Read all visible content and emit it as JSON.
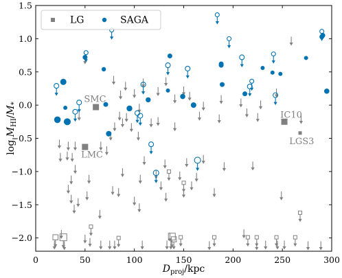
{
  "chart_data": {
    "type": "scatter",
    "xlabel": "D_proj/kpc",
    "ylabel": "log M_HI/M_*",
    "xlim": [
      0,
      300
    ],
    "ylim": [
      -2.2,
      1.5
    ],
    "xticks": [
      0,
      50,
      100,
      150,
      200,
      250,
      300
    ],
    "yticks": [
      -2.0,
      -1.5,
      -1.0,
      -0.5,
      0.0,
      0.5,
      1.0,
      1.5
    ],
    "xtick_labels": [
      "0",
      "50",
      "100",
      "150",
      "200",
      "250",
      "300"
    ],
    "ytick_labels": [
      "−2.0",
      "−1.5",
      "−1.0",
      "−0.5",
      "0.0",
      "0.5",
      "1.0",
      "1.5"
    ],
    "grid": false,
    "legend_position": "top-left",
    "colors": {
      "LG": "#808080",
      "SAGA": "#0072b2"
    },
    "legend": [
      {
        "name": "LG",
        "marker": "square",
        "color": "#808080"
      },
      {
        "name": "SAGA",
        "marker": "circle",
        "color": "#0072b2"
      }
    ],
    "annotations": [
      {
        "text": "SMC",
        "x": 49,
        "y": 0.05
      },
      {
        "text": "LMC",
        "x": 46,
        "y": -0.79
      },
      {
        "text": "IC10",
        "x": 248,
        "y": -0.19
      },
      {
        "text": "LGS3",
        "x": 257,
        "y": -0.59
      }
    ],
    "series": [
      {
        "name": "LG",
        "kind": "detection",
        "points": [
          {
            "x": 50,
            "y": -0.63,
            "size": "large",
            "label": "LMC"
          },
          {
            "x": 61,
            "y": -0.03,
            "size": "large",
            "label": "SMC"
          },
          {
            "x": 252,
            "y": -0.25,
            "size": "large",
            "label": "IC10"
          },
          {
            "x": 268,
            "y": -0.42,
            "size": "small",
            "label": "LGS3"
          }
        ]
      },
      {
        "name": "LG",
        "kind": "upper_limit",
        "arrows": [
          {
            "x": 50,
            "y": 0.75
          },
          {
            "x": 79,
            "y": 0.44
          },
          {
            "x": 86,
            "y": 0.22
          },
          {
            "x": 91,
            "y": 0.35
          },
          {
            "x": 100,
            "y": 0.24
          },
          {
            "x": 105,
            "y": 0.02
          },
          {
            "x": 109,
            "y": 0.4
          },
          {
            "x": 124,
            "y": 0.27
          },
          {
            "x": 132,
            "y": 0.42
          },
          {
            "x": 141,
            "y": 0.16
          },
          {
            "x": 150,
            "y": 0.28
          },
          {
            "x": 156,
            "y": 0.2
          },
          {
            "x": 170,
            "y": 0.05
          },
          {
            "x": 188,
            "y": 0.15
          },
          {
            "x": 208,
            "y": 0.1
          },
          {
            "x": 214,
            "y": -0.05
          },
          {
            "x": 225,
            "y": -0.12
          },
          {
            "x": 228,
            "y": 0.07
          },
          {
            "x": 244,
            "y": 0.25
          },
          {
            "x": 259,
            "y": 1.03
          },
          {
            "x": 269,
            "y": -0.15
          },
          {
            "x": 24,
            "y": -0.52
          },
          {
            "x": 32,
            "y": -0.7
          },
          {
            "x": 44,
            "y": -0.1
          },
          {
            "x": 76,
            "y": -0.4
          },
          {
            "x": 80,
            "y": -0.26
          },
          {
            "x": 85,
            "y": -0.1
          },
          {
            "x": 88,
            "y": -0.2
          },
          {
            "x": 92,
            "y": -0.12
          },
          {
            "x": 97,
            "y": -0.27
          },
          {
            "x": 104,
            "y": -0.4
          },
          {
            "x": 117,
            "y": -0.2
          },
          {
            "x": 124,
            "y": -0.18
          },
          {
            "x": 141,
            "y": -0.26
          },
          {
            "x": 166,
            "y": -0.1
          },
          {
            "x": 186,
            "y": -0.14
          },
          {
            "x": 25,
            "y": -0.72
          },
          {
            "x": 33,
            "y": -0.55
          },
          {
            "x": 37,
            "y": -0.72
          },
          {
            "x": 40,
            "y": -0.55
          },
          {
            "x": 66,
            "y": -0.55
          },
          {
            "x": 72,
            "y": -0.62
          },
          {
            "x": 110,
            "y": -0.77
          },
          {
            "x": 131,
            "y": -0.82
          },
          {
            "x": 153,
            "y": -0.8
          },
          {
            "x": 170,
            "y": -0.75
          },
          {
            "x": 191,
            "y": -0.86
          },
          {
            "x": 220,
            "y": -0.85
          },
          {
            "x": 40,
            "y": -0.9
          },
          {
            "x": 88,
            "y": -0.95
          },
          {
            "x": 122,
            "y": -0.98
          },
          {
            "x": 146,
            "y": -1.0
          },
          {
            "x": 163,
            "y": -1.02
          },
          {
            "x": 36,
            "y": -1.06
          },
          {
            "x": 54,
            "y": -1.05
          },
          {
            "x": 106,
            "y": -1.05
          },
          {
            "x": 127,
            "y": -1.15
          },
          {
            "x": 158,
            "y": -1.15
          },
          {
            "x": 33,
            "y": -1.2
          },
          {
            "x": 52,
            "y": -1.3
          },
          {
            "x": 78,
            "y": -1.22
          },
          {
            "x": 84,
            "y": -1.25
          },
          {
            "x": 150,
            "y": -1.26
          },
          {
            "x": 36,
            "y": -1.35
          },
          {
            "x": 43,
            "y": -1.4
          },
          {
            "x": 100,
            "y": -1.38
          },
          {
            "x": 132,
            "y": -1.32
          },
          {
            "x": 181,
            "y": -1.25
          },
          {
            "x": 249,
            "y": -1.3
          },
          {
            "x": 39,
            "y": -1.5
          },
          {
            "x": 65,
            "y": -1.58
          },
          {
            "x": 105,
            "y": -1.48
          },
          {
            "x": 26,
            "y": -1.88
          },
          {
            "x": 136,
            "y": -1.92
          },
          {
            "x": 211,
            "y": -1.87
          },
          {
            "x": 19,
            "y": -2.04
          },
          {
            "x": 29,
            "y": -2.05
          },
          {
            "x": 50,
            "y": -1.95
          },
          {
            "x": 55,
            "y": -2.0
          },
          {
            "x": 66,
            "y": -2.04
          },
          {
            "x": 75,
            "y": -2.04
          },
          {
            "x": 80,
            "y": -2.04
          },
          {
            "x": 108,
            "y": -2.04
          },
          {
            "x": 133,
            "y": -2.04
          },
          {
            "x": 137,
            "y": -2.04
          },
          {
            "x": 176,
            "y": -2.05
          },
          {
            "x": 224,
            "y": -2.05
          },
          {
            "x": 233,
            "y": -2.04
          },
          {
            "x": 245,
            "y": -2.04
          },
          {
            "x": 252,
            "y": -2.04
          },
          {
            "x": 276,
            "y": -2.05
          },
          {
            "x": 289,
            "y": -2.05
          }
        ],
        "squares": [
          {
            "x": 20,
            "y": -1.99,
            "size": "medium"
          },
          {
            "x": 28,
            "y": -1.99,
            "size": "large"
          },
          {
            "x": 56,
            "y": -1.83,
            "size": "small"
          },
          {
            "x": 84,
            "y": -2.0,
            "size": "small"
          },
          {
            "x": 138,
            "y": -1.98,
            "size": "large"
          },
          {
            "x": 140,
            "y": -2.02,
            "size": "medium"
          },
          {
            "x": 147,
            "y": -1.99,
            "size": "small"
          },
          {
            "x": 181,
            "y": -1.99,
            "size": "small"
          },
          {
            "x": 215,
            "y": -1.99,
            "size": "small"
          },
          {
            "x": 224,
            "y": -1.99,
            "size": "small"
          },
          {
            "x": 244,
            "y": -1.99,
            "size": "small"
          },
          {
            "x": 263,
            "y": -1.99,
            "size": "small"
          },
          {
            "x": 268,
            "y": -1.62,
            "size": "small"
          },
          {
            "x": 135,
            "y": -1.0,
            "size": "small"
          },
          {
            "x": 150,
            "y": -1.17,
            "size": "small"
          }
        ]
      },
      {
        "name": "SAGA",
        "kind": "detection",
        "points": [
          {
            "x": 22,
            "y": -0.22,
            "size": 4.8
          },
          {
            "x": 28,
            "y": 0.35,
            "size": 4.5
          },
          {
            "x": 30,
            "y": -0.04,
            "size": 3.0
          },
          {
            "x": 32,
            "y": -0.25,
            "size": 5.0
          },
          {
            "x": 50,
            "y": 0.72,
            "size": 3.5
          },
          {
            "x": 69,
            "y": 0.54,
            "size": 3.2
          },
          {
            "x": 71,
            "y": 0.01,
            "size": 3.5
          },
          {
            "x": 74,
            "y": -0.43,
            "size": 4.0
          },
          {
            "x": 95,
            "y": -0.05,
            "size": 4.2
          },
          {
            "x": 114,
            "y": 0.08,
            "size": 3.7
          },
          {
            "x": 134,
            "y": 0.22,
            "size": 3.0
          },
          {
            "x": 136,
            "y": 0.74,
            "size": 3.5
          },
          {
            "x": 149,
            "y": 0.13,
            "size": 3.8
          },
          {
            "x": 160,
            "y": 0.0,
            "size": 4.0
          },
          {
            "x": 188,
            "y": 0.62,
            "size": 3.5
          },
          {
            "x": 188,
            "y": 0.6,
            "size": 3.5
          },
          {
            "x": 189,
            "y": 0.31,
            "size": 3.5
          },
          {
            "x": 212,
            "y": 0.17,
            "size": 3.5
          },
          {
            "x": 230,
            "y": 0.56,
            "size": 3.0
          },
          {
            "x": 240,
            "y": 0.49,
            "size": 3.0
          },
          {
            "x": 248,
            "y": 0.47,
            "size": 3.0
          },
          {
            "x": 274,
            "y": 0.71,
            "size": 3.0
          },
          {
            "x": 290,
            "y": 1.03,
            "size": 3.5
          },
          {
            "x": 291,
            "y": 1.05,
            "size": 3.5
          },
          {
            "x": 295,
            "y": 0.21,
            "size": 3.8
          }
        ]
      },
      {
        "name": "SAGA",
        "kind": "upper_limit",
        "points": [
          {
            "x": 21,
            "y": 0.29,
            "size": 3.5
          },
          {
            "x": 40,
            "y": -0.1,
            "size": 3.5
          },
          {
            "x": 44,
            "y": 0.04,
            "size": 3.5
          },
          {
            "x": 51,
            "y": 0.79,
            "size": 3.0
          },
          {
            "x": 77,
            "y": 1.13,
            "size": 3.0
          },
          {
            "x": 103,
            "y": -0.12,
            "size": 3.5
          },
          {
            "x": 106,
            "y": -0.16,
            "size": 3.5
          },
          {
            "x": 109,
            "y": 0.31,
            "size": 3.5
          },
          {
            "x": 117,
            "y": -0.59,
            "size": 3.5
          },
          {
            "x": 122,
            "y": -1.02,
            "size": 4.0
          },
          {
            "x": 134,
            "y": 0.6,
            "size": 3.5
          },
          {
            "x": 154,
            "y": 0.55,
            "size": 3.5
          },
          {
            "x": 164,
            "y": -0.83,
            "size": 4.5
          },
          {
            "x": 184,
            "y": 1.36,
            "size": 3.0
          },
          {
            "x": 196,
            "y": 1.0,
            "size": 3.0
          },
          {
            "x": 209,
            "y": 0.72,
            "size": 3.5
          },
          {
            "x": 217,
            "y": 0.28,
            "size": 3.5
          },
          {
            "x": 219,
            "y": 0.36,
            "size": 3.0
          },
          {
            "x": 241,
            "y": 0.77,
            "size": 3.0
          },
          {
            "x": 243,
            "y": 0.15,
            "size": 3.5
          },
          {
            "x": 290,
            "y": 1.11,
            "size": 3.0
          }
        ]
      }
    ]
  }
}
